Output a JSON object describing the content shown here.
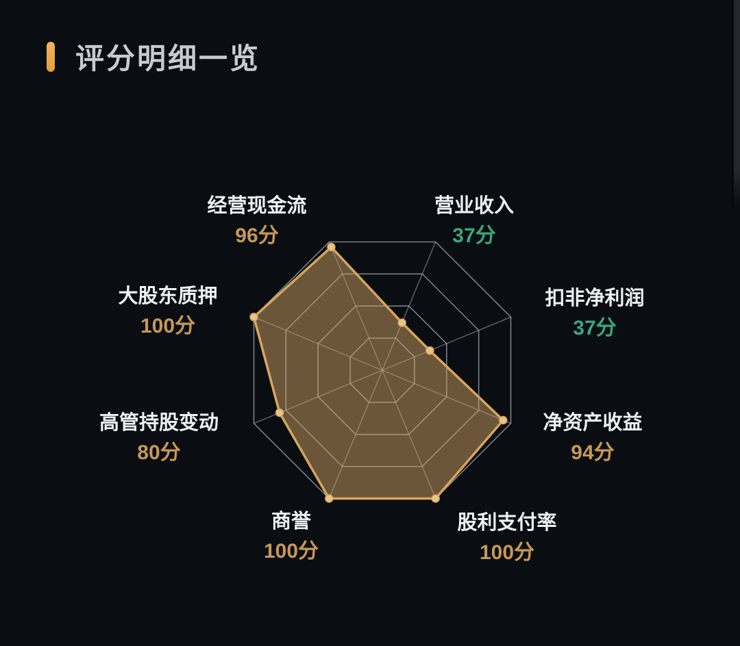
{
  "header": {
    "title": "评分明细一览"
  },
  "chart_data": {
    "type": "radar",
    "title": "评分明细一览",
    "unit": "分",
    "axis_max": 100,
    "ring_count": 4,
    "grid_on": true,
    "legend_position": "none",
    "indicators": [
      {
        "name": "经营现金流",
        "value": 96,
        "score_label": "96分",
        "value_color": "#c89858"
      },
      {
        "name": "营业收入",
        "value": 37,
        "score_label": "37分",
        "value_color": "#3ea57c"
      },
      {
        "name": "扣非净利润",
        "value": 37,
        "score_label": "37分",
        "value_color": "#3ea57c"
      },
      {
        "name": "净资产收益",
        "value": 94,
        "score_label": "94分",
        "value_color": "#c89858"
      },
      {
        "name": "股利支付率",
        "value": 100,
        "score_label": "100分",
        "value_color": "#c89858"
      },
      {
        "name": "商誉",
        "value": 100,
        "score_label": "100分",
        "value_color": "#c89858"
      },
      {
        "name": "高管持股变动",
        "value": 80,
        "score_label": "80分",
        "value_color": "#c89858"
      },
      {
        "name": "大股东质押",
        "value": 100,
        "score_label": "100分",
        "value_color": "#c89858"
      }
    ],
    "colors": {
      "background": "#0a0d12",
      "grid_line": "#a7adb6",
      "series_line": "#d7a65c",
      "series_fill": "rgba(203,160,97,0.50)",
      "series_dot": "#e9c488",
      "gold_score": "#c89858",
      "green_score": "#3ea57c",
      "title_text": "#c6cbd3",
      "accent_bar": "#eda84c",
      "label_text": "#eef1f4"
    }
  }
}
